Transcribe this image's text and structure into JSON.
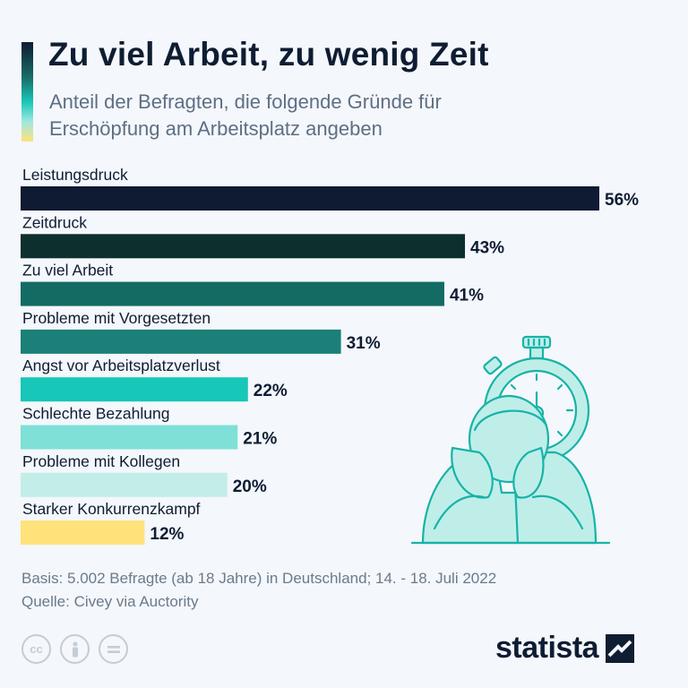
{
  "header": {
    "title": "Zu viel Arbeit, zu wenig Zeit",
    "subtitle": "Anteil der Befragten, die folgende Gründe für Erschöpfung am Arbeitsplatz angeben"
  },
  "chart_data": {
    "type": "bar",
    "orientation": "horizontal",
    "categories": [
      "Leistungsdruck",
      "Zeitdruck",
      "Zu viel Arbeit",
      "Probleme mit Vorgesetzten",
      "Angst vor Arbeitsplatzverlust",
      "Schlechte Bezahlung",
      "Probleme mit Kollegen",
      "Starker Konkurrenzkampf"
    ],
    "values": [
      56,
      43,
      41,
      31,
      22,
      21,
      20,
      12
    ],
    "value_labels": [
      "56%",
      "43%",
      "41%",
      "31%",
      "22%",
      "21%",
      "20%",
      "12%"
    ],
    "colors": [
      "#0f1b33",
      "#0d2f2e",
      "#136b63",
      "#1a8078",
      "#17c7b8",
      "#7ee0d7",
      "#c3ede9",
      "#ffe27a"
    ],
    "unit": "%",
    "grid": false,
    "legend": "none"
  },
  "footer": {
    "basis": "Basis: 5.002 Befragte (ab 18 Jahre) in Deutschland; 14. - 18. Juli 2022",
    "source": "Quelle: Civey via Auctority",
    "license_icons": [
      "cc-icon",
      "attribution-icon",
      "no-derivatives-icon"
    ],
    "logo": "statista"
  }
}
